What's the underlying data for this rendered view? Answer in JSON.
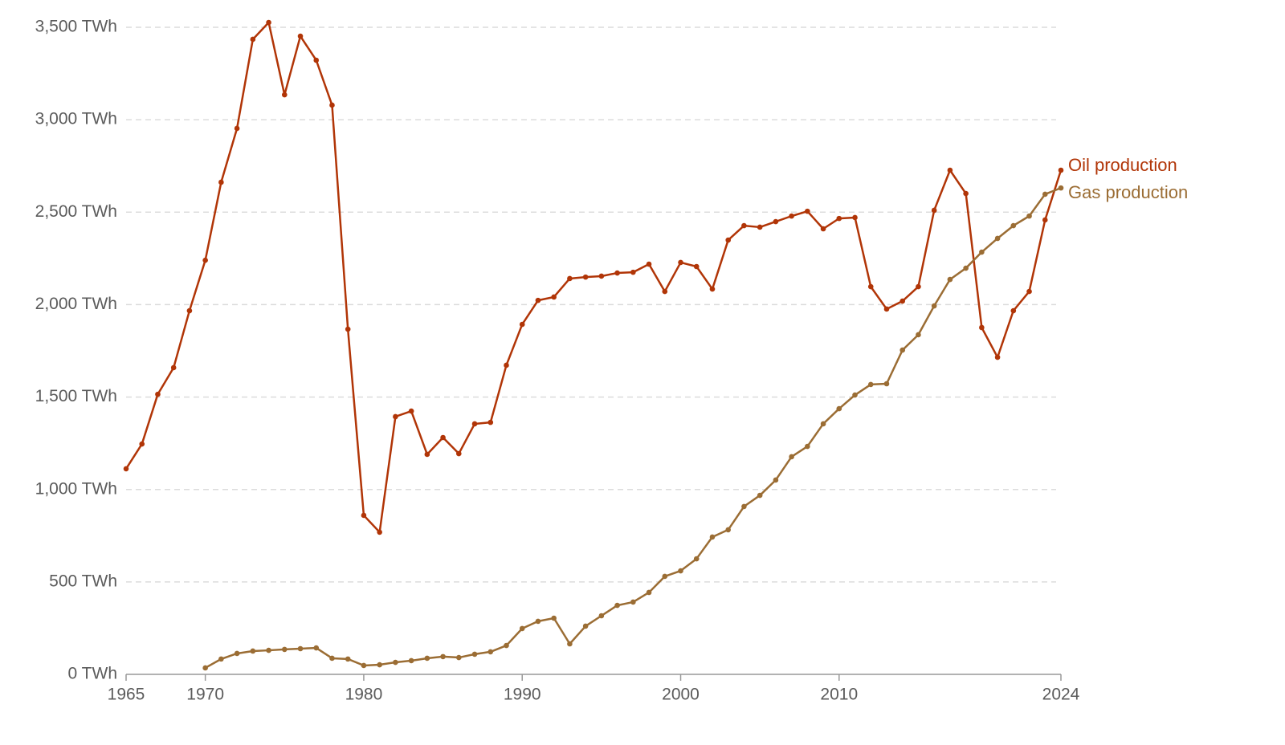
{
  "chart_data": {
    "type": "line",
    "x": [
      1965,
      1966,
      1967,
      1968,
      1969,
      1970,
      1971,
      1972,
      1973,
      1974,
      1975,
      1976,
      1977,
      1978,
      1979,
      1980,
      1981,
      1982,
      1983,
      1984,
      1985,
      1986,
      1987,
      1988,
      1989,
      1990,
      1991,
      1992,
      1993,
      1994,
      1995,
      1996,
      1997,
      1998,
      1999,
      2000,
      2001,
      2002,
      2003,
      2004,
      2005,
      2006,
      2007,
      2008,
      2009,
      2010,
      2011,
      2012,
      2013,
      2014,
      2015,
      2016,
      2017,
      2018,
      2019,
      2020,
      2021,
      2022,
      2023,
      2024
    ],
    "series": [
      {
        "name": "Oil production",
        "color": "#b13507",
        "values": [
          1112,
          1246,
          1515,
          1659,
          1967,
          2240,
          2662,
          2953,
          3435,
          3526,
          3135,
          3452,
          3322,
          3079,
          1867,
          860,
          769,
          1394,
          1424,
          1190,
          1281,
          1194,
          1355,
          1363,
          1672,
          1893,
          2023,
          2041,
          2141,
          2149,
          2154,
          2171,
          2175,
          2219,
          2071,
          2228,
          2206,
          2084,
          2349,
          2427,
          2419,
          2449,
          2479,
          2505,
          2410,
          2466,
          2471,
          2097,
          1976,
          2019,
          2097,
          2510,
          2727,
          2601,
          1876,
          1715,
          1967,
          2071,
          2458,
          2727
        ]
      },
      {
        "name": "Gas production",
        "color": "#9b6d34",
        "values": [
          null,
          null,
          null,
          null,
          null,
          35,
          83,
          113,
          126,
          130,
          135,
          139,
          143,
          87,
          83,
          48,
          52,
          65,
          74,
          87,
          96,
          91,
          109,
          122,
          156,
          248,
          287,
          304,
          165,
          261,
          317,
          373,
          391,
          443,
          530,
          560,
          625,
          743,
          782,
          908,
          968,
          1051,
          1177,
          1233,
          1355,
          1437,
          1511,
          1568,
          1572,
          1754,
          1837,
          1993,
          2136,
          2197,
          2284,
          2358,
          2427,
          2479,
          2597,
          2631
        ]
      }
    ],
    "xlim": [
      1965,
      2024
    ],
    "xticks": [
      1965,
      1970,
      1980,
      1990,
      2000,
      2010,
      2024
    ],
    "ylim": [
      0,
      3500
    ],
    "yticks": [
      {
        "value": 0,
        "label": "0 TWh"
      },
      {
        "value": 500,
        "label": "500 TWh"
      },
      {
        "value": 1000,
        "label": "1,000 TWh"
      },
      {
        "value": 1500,
        "label": "1,500 TWh"
      },
      {
        "value": 2000,
        "label": "2,000 TWh"
      },
      {
        "value": 2500,
        "label": "2,500 TWh"
      },
      {
        "value": 3000,
        "label": "3,000 TWh"
      },
      {
        "value": 3500,
        "label": "3,500 TWh"
      }
    ],
    "grid": true
  }
}
